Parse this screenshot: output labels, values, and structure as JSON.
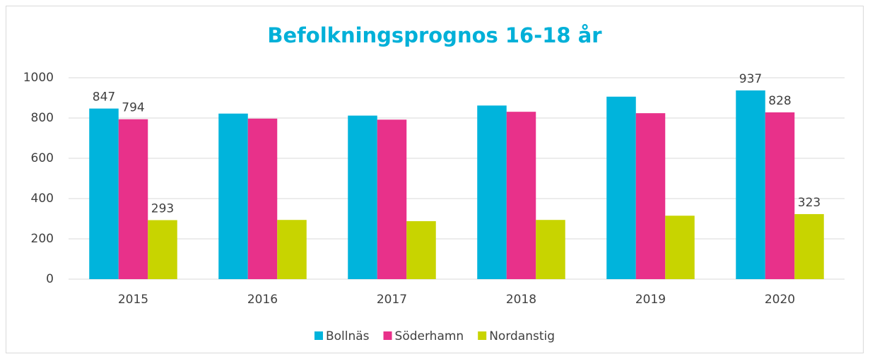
{
  "chart_data": {
    "type": "bar",
    "title": "Befolkningsprognos 16-18 år",
    "categories": [
      "2015",
      "2016",
      "2017",
      "2018",
      "2019",
      "2020"
    ],
    "series": [
      {
        "name": "Bollnäs",
        "color": "#00b4dc",
        "values": [
          847,
          822,
          812,
          862,
          906,
          937
        ],
        "value_labels": [
          847,
          null,
          null,
          null,
          null,
          937
        ]
      },
      {
        "name": "Söderhamn",
        "color": "#e8318a",
        "values": [
          794,
          797,
          792,
          831,
          824,
          828
        ],
        "value_labels": [
          794,
          null,
          null,
          null,
          null,
          828
        ]
      },
      {
        "name": "Nordanstig",
        "color": "#c8d400",
        "values": [
          293,
          294,
          288,
          294,
          315,
          323
        ],
        "value_labels": [
          293,
          null,
          null,
          null,
          null,
          323
        ]
      }
    ],
    "ylim": [
      0,
      1000
    ],
    "yticks": [
      0,
      200,
      400,
      600,
      800,
      1000
    ],
    "grid": true,
    "legend": "bottom"
  }
}
